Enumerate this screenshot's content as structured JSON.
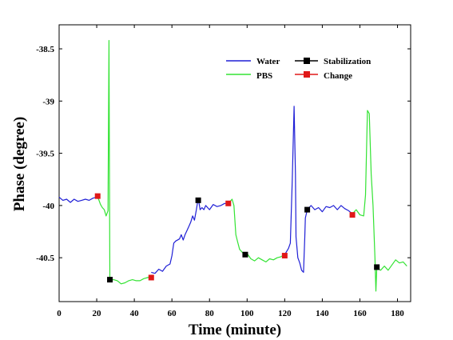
{
  "chart_data": {
    "type": "line",
    "xlabel": "Time (minute)",
    "ylabel": "Phase (degree)",
    "xlim": [
      0,
      187
    ],
    "ylim": [
      -40.92,
      -38.27
    ],
    "x_ticks": [
      0,
      20,
      40,
      60,
      80,
      100,
      120,
      140,
      160,
      180
    ],
    "x_tick_labels": [
      "0",
      "20",
      "40",
      "60",
      "80",
      "100",
      "120",
      "140",
      "160",
      "180"
    ],
    "y_ticks": [
      -38.5,
      -39,
      -39.5,
      -40,
      -40.5
    ],
    "y_tick_labels": [
      "-38.5",
      "-39",
      "-39.5",
      "-40",
      "-40.5"
    ],
    "grid": false,
    "legend_position": "top-right",
    "series": [
      {
        "name": "Water",
        "color": "#1f1fd6",
        "style": "line",
        "segments": [
          [
            [
              0,
              -39.92
            ],
            [
              2,
              -39.95
            ],
            [
              4,
              -39.94
            ],
            [
              6,
              -39.97
            ],
            [
              8,
              -39.94
            ],
            [
              10,
              -39.96
            ],
            [
              12,
              -39.95
            ],
            [
              14,
              -39.94
            ],
            [
              16,
              -39.95
            ],
            [
              18,
              -39.93
            ],
            [
              20,
              -39.92
            ]
          ],
          [
            [
              49,
              -40.64
            ],
            [
              51,
              -40.65
            ],
            [
              53,
              -40.61
            ],
            [
              55,
              -40.63
            ],
            [
              57,
              -40.58
            ],
            [
              59,
              -40.56
            ],
            [
              60,
              -40.48
            ],
            [
              61,
              -40.36
            ],
            [
              62,
              -40.34
            ],
            [
              64,
              -40.32
            ],
            [
              65,
              -40.28
            ],
            [
              66,
              -40.33
            ],
            [
              67,
              -40.28
            ],
            [
              68,
              -40.24
            ],
            [
              69,
              -40.2
            ],
            [
              70,
              -40.16
            ],
            [
              71,
              -40.1
            ],
            [
              72,
              -40.14
            ],
            [
              73,
              -40.04
            ],
            [
              74,
              -39.93
            ],
            [
              75,
              -40.04
            ],
            [
              76,
              -40.02
            ],
            [
              77,
              -40.04
            ],
            [
              78,
              -40.0
            ],
            [
              80,
              -40.04
            ],
            [
              82,
              -39.99
            ],
            [
              84,
              -40.01
            ],
            [
              86,
              -40.0
            ],
            [
              88,
              -39.98
            ],
            [
              90,
              -39.98
            ]
          ],
          [
            [
              120,
              -40.47
            ],
            [
              122,
              -40.41
            ],
            [
              123,
              -40.36
            ],
            [
              124,
              -39.76
            ],
            [
              125,
              -39.05
            ],
            [
              125.7,
              -39.7
            ],
            [
              126,
              -40.3
            ],
            [
              127,
              -40.5
            ],
            [
              128,
              -40.55
            ],
            [
              129,
              -40.62
            ],
            [
              130,
              -40.64
            ],
            [
              130.7,
              -40.3
            ],
            [
              131,
              -40.12
            ],
            [
              132,
              -40.04
            ],
            [
              134,
              -40.0
            ],
            [
              136,
              -40.04
            ],
            [
              138,
              -40.02
            ],
            [
              140,
              -40.06
            ],
            [
              142,
              -40.01
            ],
            [
              144,
              -40.02
            ],
            [
              146,
              -40.0
            ],
            [
              148,
              -40.04
            ],
            [
              150,
              -40.0
            ],
            [
              152,
              -40.03
            ],
            [
              154,
              -40.05
            ],
            [
              156,
              -40.08
            ]
          ]
        ]
      },
      {
        "name": "PBS",
        "color": "#33e333",
        "style": "line",
        "segments": [
          [
            [
              20,
              -39.92
            ],
            [
              21,
              -39.94
            ],
            [
              22,
              -39.99
            ],
            [
              23,
              -40.02
            ],
            [
              24,
              -40.04
            ],
            [
              25,
              -40.1
            ],
            [
              26,
              -40.05
            ],
            [
              26.5,
              -38.42
            ],
            [
              27,
              -40.71
            ],
            [
              29,
              -40.71
            ],
            [
              31,
              -40.72
            ],
            [
              33,
              -40.75
            ],
            [
              35,
              -40.74
            ],
            [
              37,
              -40.72
            ],
            [
              39,
              -40.71
            ],
            [
              41,
              -40.72
            ],
            [
              43,
              -40.72
            ],
            [
              45,
              -40.7
            ],
            [
              47,
              -40.69
            ],
            [
              49,
              -40.68
            ]
          ],
          [
            [
              90,
              -39.98
            ],
            [
              92,
              -39.94
            ],
            [
              93,
              -40.0
            ],
            [
              94,
              -40.28
            ],
            [
              95,
              -40.35
            ],
            [
              96,
              -40.42
            ],
            [
              98,
              -40.46
            ],
            [
              100,
              -40.46
            ],
            [
              102,
              -40.51
            ],
            [
              104,
              -40.53
            ],
            [
              106,
              -40.5
            ],
            [
              108,
              -40.52
            ],
            [
              110,
              -40.54
            ],
            [
              112,
              -40.51
            ],
            [
              114,
              -40.52
            ],
            [
              116,
              -40.5
            ],
            [
              118,
              -40.49
            ],
            [
              120,
              -40.47
            ]
          ],
          [
            [
              156,
              -40.08
            ],
            [
              158,
              -40.04
            ],
            [
              160,
              -40.09
            ],
            [
              162,
              -40.1
            ],
            [
              163,
              -39.9
            ],
            [
              164,
              -39.09
            ],
            [
              165,
              -39.12
            ],
            [
              166,
              -39.7
            ],
            [
              167,
              -40.0
            ],
            [
              168,
              -40.5
            ],
            [
              168.5,
              -40.82
            ],
            [
              169,
              -40.6
            ],
            [
              171,
              -40.62
            ],
            [
              173,
              -40.58
            ],
            [
              175,
              -40.62
            ],
            [
              177,
              -40.57
            ],
            [
              179,
              -40.52
            ],
            [
              181,
              -40.55
            ],
            [
              183,
              -40.54
            ],
            [
              185,
              -40.58
            ]
          ]
        ]
      },
      {
        "name": "Stabilization",
        "color": "#000000",
        "style": "markers",
        "points": [
          [
            27,
            -40.71
          ],
          [
            74,
            -39.95
          ],
          [
            99,
            -40.47
          ],
          [
            132,
            -40.04
          ],
          [
            169,
            -40.59
          ]
        ]
      },
      {
        "name": "Change",
        "color": "#e01818",
        "style": "markers",
        "points": [
          [
            20.5,
            -39.91
          ],
          [
            49,
            -40.69
          ],
          [
            90,
            -39.98
          ],
          [
            120,
            -40.48
          ],
          [
            156,
            -40.09
          ]
        ]
      }
    ]
  }
}
